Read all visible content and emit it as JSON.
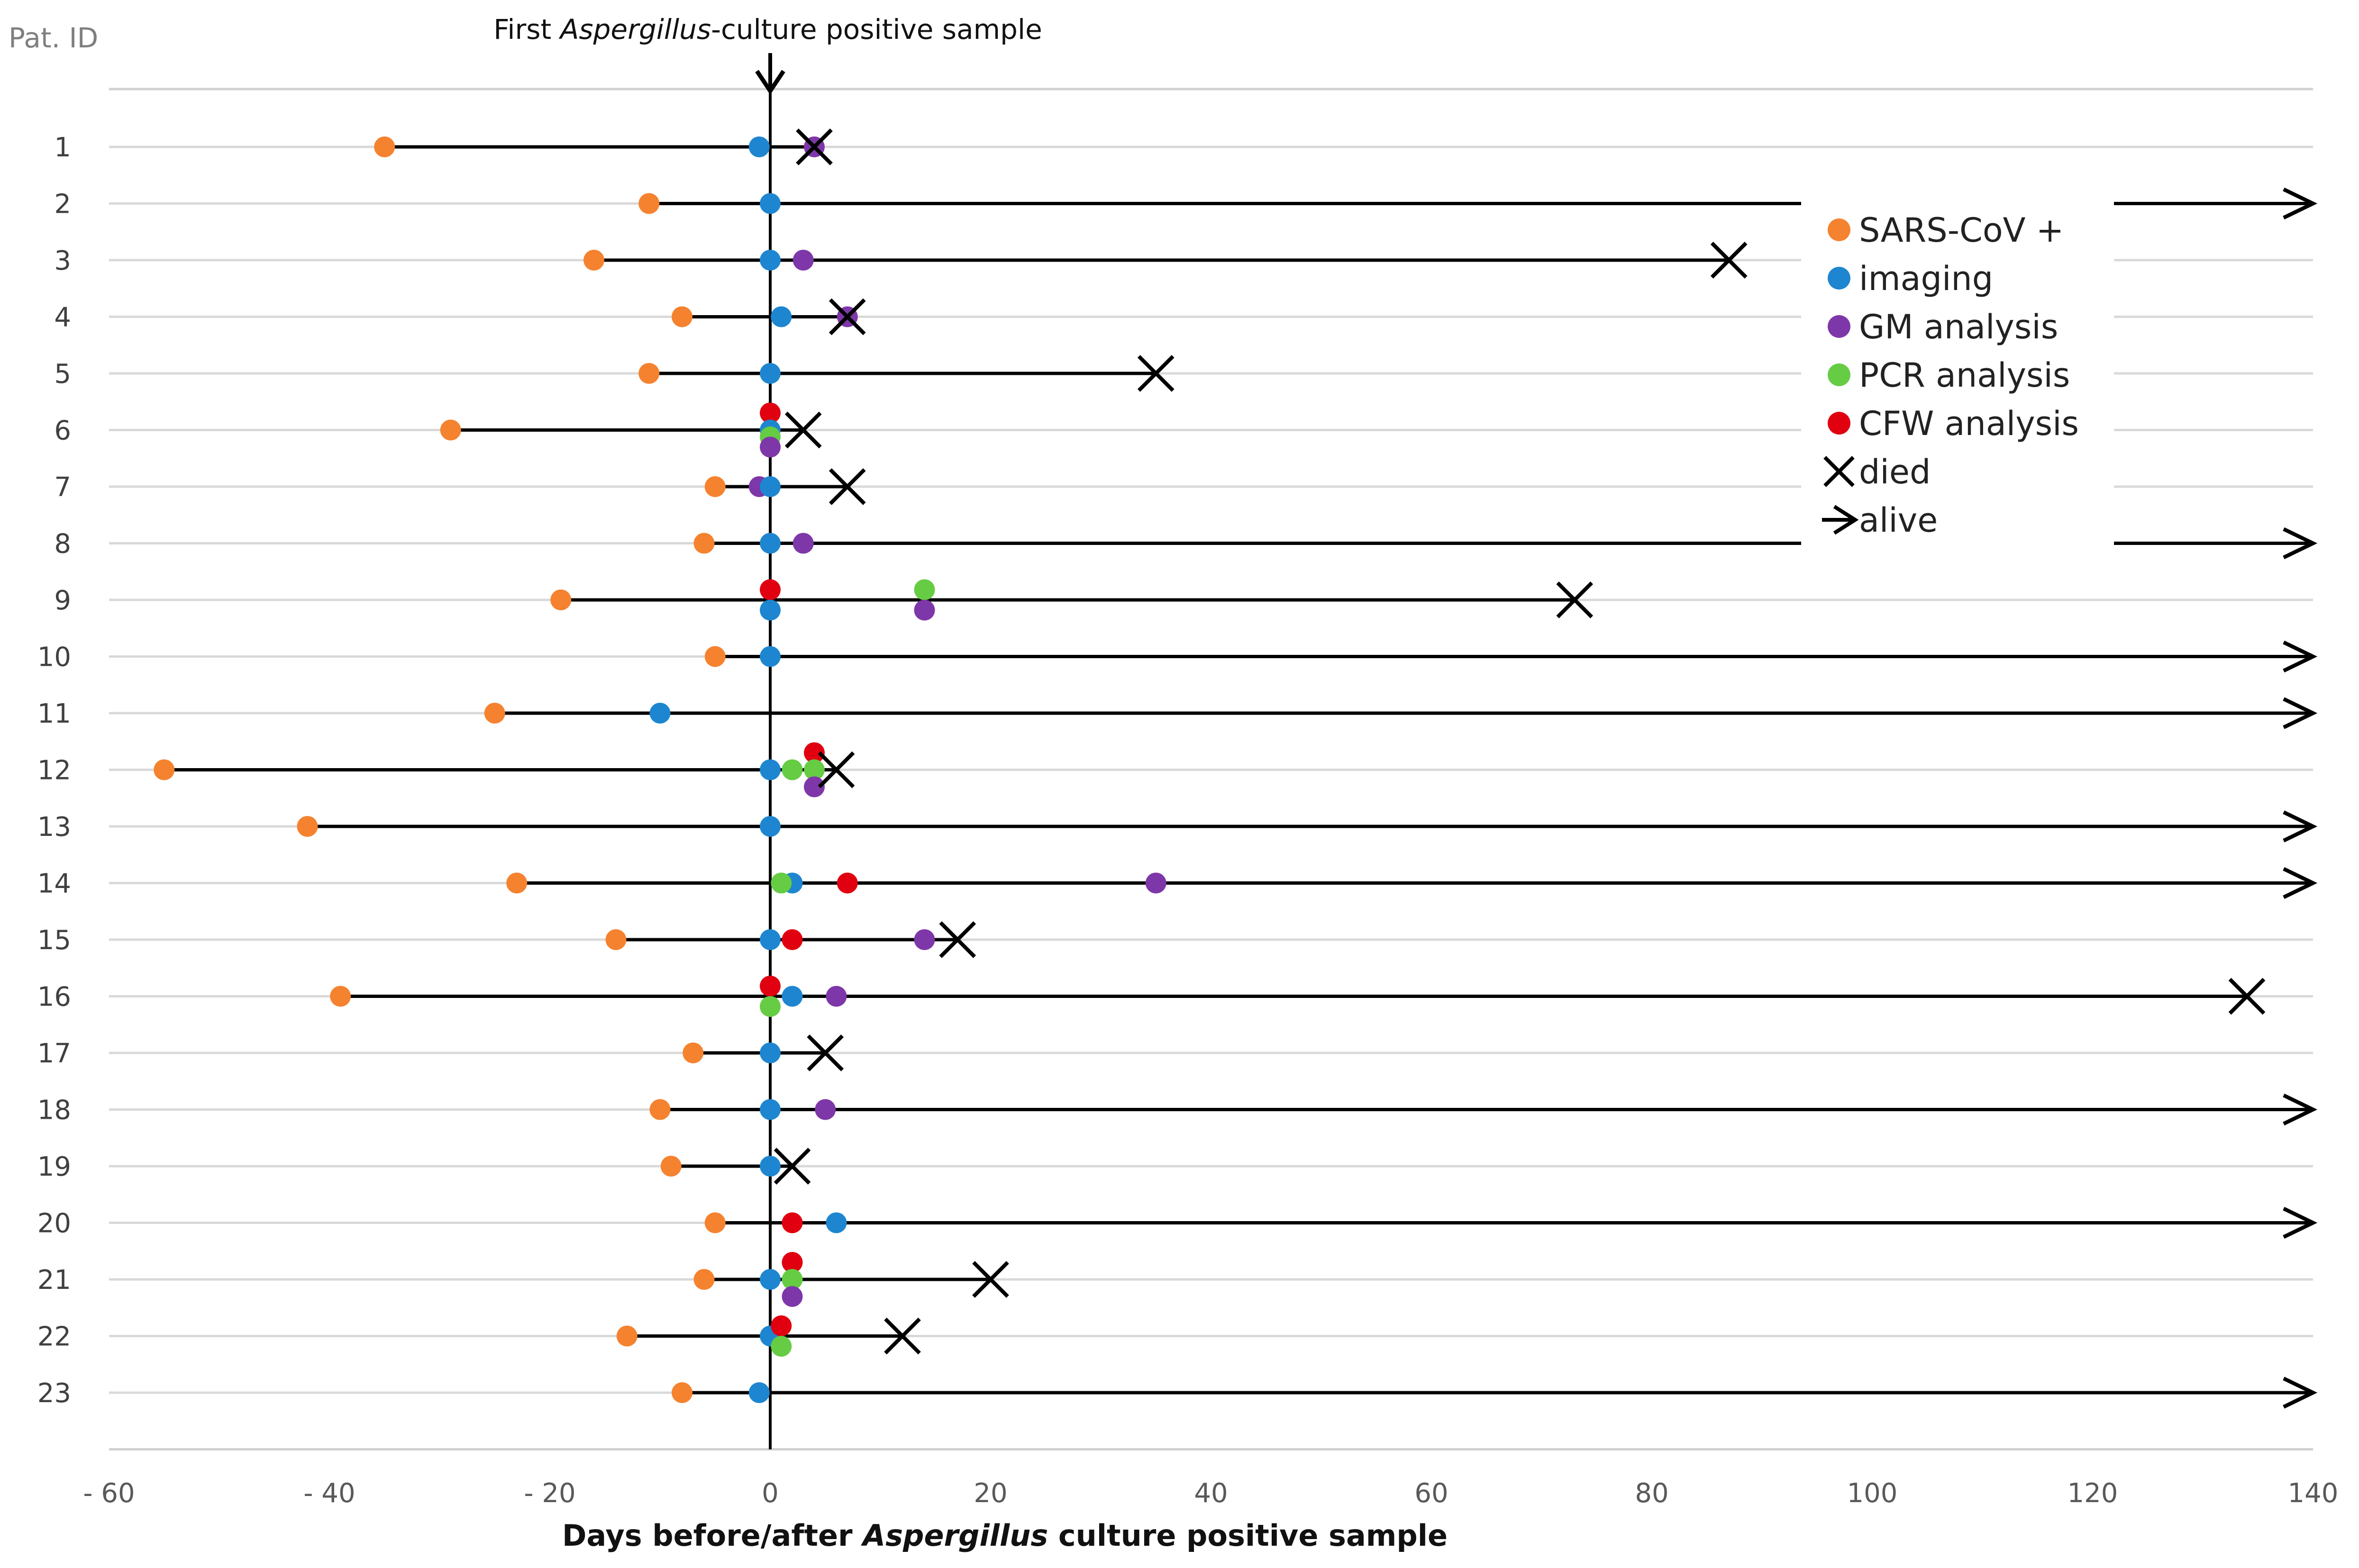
{
  "chart_data": {
    "type": "scatter",
    "title_annotation": {
      "prefix": "First ",
      "italic": "Aspergillus",
      "suffix": "-culture positive sample"
    },
    "ylabel": "Pat. ID",
    "xlabel": {
      "prefix": "Days before/after ",
      "italic": "Aspergillus",
      "suffix": " culture positive sample"
    },
    "xlim": [
      -60,
      140
    ],
    "xticks": [
      -60,
      -40,
      -20,
      0,
      20,
      40,
      60,
      80,
      100,
      120,
      140
    ],
    "xtick_labels": [
      "- 60",
      "- 40",
      "- 20",
      "0",
      "20",
      "40",
      "60",
      "80",
      "100",
      "120",
      "140"
    ],
    "grid": true,
    "legend_position": "top-right",
    "legend": [
      {
        "key": "sars",
        "label": "SARS-CoV +",
        "marker": "dot",
        "color": "#F5822F"
      },
      {
        "key": "imaging",
        "label": "imaging",
        "marker": "dot",
        "color": "#1E86D0"
      },
      {
        "key": "gm",
        "label": "GM analysis",
        "marker": "dot",
        "color": "#7E37A8"
      },
      {
        "key": "pcr",
        "label": "PCR analysis",
        "marker": "dot",
        "color": "#66CC44"
      },
      {
        "key": "cfw",
        "label": "CFW analysis",
        "marker": "dot",
        "color": "#E00010"
      },
      {
        "key": "died",
        "label": "died",
        "marker": "cross",
        "color": "#000000"
      },
      {
        "key": "alive",
        "label": "alive",
        "marker": "arrow",
        "color": "#000000"
      }
    ],
    "patients": [
      {
        "id": "1",
        "start": -35,
        "end": 4,
        "outcome": "died",
        "events": [
          {
            "t": "sars",
            "d": -35
          },
          {
            "t": "imaging",
            "d": -1
          },
          {
            "t": "gm",
            "d": 4
          }
        ]
      },
      {
        "id": "2",
        "start": -11,
        "end": 140,
        "outcome": "alive",
        "events": [
          {
            "t": "sars",
            "d": -11
          },
          {
            "t": "imaging",
            "d": 0
          }
        ]
      },
      {
        "id": "3",
        "start": -16,
        "end": 87,
        "outcome": "died",
        "events": [
          {
            "t": "sars",
            "d": -16
          },
          {
            "t": "imaging",
            "d": 0
          },
          {
            "t": "gm",
            "d": 3
          }
        ]
      },
      {
        "id": "4",
        "start": -8,
        "end": 7,
        "outcome": "died",
        "events": [
          {
            "t": "sars",
            "d": -8
          },
          {
            "t": "imaging",
            "d": 1
          },
          {
            "t": "gm",
            "d": 7
          }
        ]
      },
      {
        "id": "5",
        "start": -11,
        "end": 35,
        "outcome": "died",
        "events": [
          {
            "t": "sars",
            "d": -11
          },
          {
            "t": "imaging",
            "d": 0
          }
        ]
      },
      {
        "id": "6",
        "start": -29,
        "end": 3,
        "outcome": "died",
        "events": [
          {
            "t": "sars",
            "d": -29
          },
          {
            "t": "cfw",
            "d": 0,
            "off": -1
          },
          {
            "t": "imaging",
            "d": 0,
            "off": 0
          },
          {
            "t": "pcr",
            "d": 0,
            "off": 0.4
          },
          {
            "t": "gm",
            "d": 0,
            "off": 1
          }
        ]
      },
      {
        "id": "7",
        "start": -5,
        "end": 7,
        "outcome": "died",
        "events": [
          {
            "t": "sars",
            "d": -5
          },
          {
            "t": "gm",
            "d": -1
          },
          {
            "t": "imaging",
            "d": 0
          }
        ]
      },
      {
        "id": "8",
        "start": -6,
        "end": 140,
        "outcome": "alive",
        "events": [
          {
            "t": "sars",
            "d": -6
          },
          {
            "t": "imaging",
            "d": 0
          },
          {
            "t": "gm",
            "d": 3
          }
        ]
      },
      {
        "id": "9",
        "start": -19,
        "end": 73,
        "outcome": "died",
        "events": [
          {
            "t": "sars",
            "d": -19
          },
          {
            "t": "cfw",
            "d": 0,
            "off": -0.6
          },
          {
            "t": "imaging",
            "d": 0,
            "off": 0.6
          },
          {
            "t": "pcr",
            "d": 14,
            "off": -0.6
          },
          {
            "t": "gm",
            "d": 14,
            "off": 0.6
          }
        ]
      },
      {
        "id": "10",
        "start": -5,
        "end": 140,
        "outcome": "alive",
        "events": [
          {
            "t": "sars",
            "d": -5
          },
          {
            "t": "imaging",
            "d": 0
          }
        ]
      },
      {
        "id": "11",
        "start": -25,
        "end": 140,
        "outcome": "alive",
        "events": [
          {
            "t": "sars",
            "d": -25
          },
          {
            "t": "imaging",
            "d": -10
          }
        ]
      },
      {
        "id": "12",
        "start": -55,
        "end": 6,
        "outcome": "died",
        "events": [
          {
            "t": "sars",
            "d": -55
          },
          {
            "t": "imaging",
            "d": 0
          },
          {
            "t": "pcr",
            "d": 2
          },
          {
            "t": "cfw",
            "d": 4,
            "off": -1
          },
          {
            "t": "pcr",
            "d": 4,
            "off": 0
          },
          {
            "t": "gm",
            "d": 4,
            "off": 1
          }
        ]
      },
      {
        "id": "13",
        "start": -42,
        "end": 140,
        "outcome": "alive",
        "events": [
          {
            "t": "sars",
            "d": -42
          },
          {
            "t": "imaging",
            "d": 0
          }
        ]
      },
      {
        "id": "14",
        "start": -23,
        "end": 140,
        "outcome": "alive",
        "events": [
          {
            "t": "sars",
            "d": -23
          },
          {
            "t": "imaging",
            "d": 2
          },
          {
            "t": "pcr",
            "d": 1
          },
          {
            "t": "cfw",
            "d": 7
          },
          {
            "t": "gm",
            "d": 35
          }
        ]
      },
      {
        "id": "15",
        "start": -14,
        "end": 17,
        "outcome": "died",
        "events": [
          {
            "t": "sars",
            "d": -14
          },
          {
            "t": "imaging",
            "d": 0
          },
          {
            "t": "cfw",
            "d": 2
          },
          {
            "t": "gm",
            "d": 14
          }
        ]
      },
      {
        "id": "16",
        "start": -39,
        "end": 134,
        "outcome": "died",
        "events": [
          {
            "t": "sars",
            "d": -39
          },
          {
            "t": "cfw",
            "d": 0,
            "off": -0.6
          },
          {
            "t": "pcr",
            "d": 0,
            "off": 0.6
          },
          {
            "t": "imaging",
            "d": 2
          },
          {
            "t": "gm",
            "d": 6
          }
        ]
      },
      {
        "id": "17",
        "start": -7,
        "end": 5,
        "outcome": "died",
        "events": [
          {
            "t": "sars",
            "d": -7
          },
          {
            "t": "imaging",
            "d": 0
          }
        ]
      },
      {
        "id": "18",
        "start": -10,
        "end": 140,
        "outcome": "alive",
        "events": [
          {
            "t": "sars",
            "d": -10
          },
          {
            "t": "imaging",
            "d": 0
          },
          {
            "t": "gm",
            "d": 5
          }
        ]
      },
      {
        "id": "19",
        "start": -9,
        "end": 2,
        "outcome": "died",
        "events": [
          {
            "t": "sars",
            "d": -9
          },
          {
            "t": "imaging",
            "d": 0
          }
        ]
      },
      {
        "id": "20",
        "start": -5,
        "end": 140,
        "outcome": "alive",
        "events": [
          {
            "t": "sars",
            "d": -5
          },
          {
            "t": "cfw",
            "d": 2
          },
          {
            "t": "imaging",
            "d": 6
          }
        ]
      },
      {
        "id": "21",
        "start": -6,
        "end": 20,
        "outcome": "died",
        "events": [
          {
            "t": "sars",
            "d": -6
          },
          {
            "t": "imaging",
            "d": 0
          },
          {
            "t": "cfw",
            "d": 2,
            "off": -1
          },
          {
            "t": "pcr",
            "d": 2,
            "off": 0
          },
          {
            "t": "gm",
            "d": 2,
            "off": 1
          }
        ]
      },
      {
        "id": "22",
        "start": -13,
        "end": 12,
        "outcome": "died",
        "events": [
          {
            "t": "sars",
            "d": -13
          },
          {
            "t": "imaging",
            "d": 0
          },
          {
            "t": "cfw",
            "d": 1,
            "off": -0.6
          },
          {
            "t": "pcr",
            "d": 1,
            "off": 0.6
          }
        ]
      },
      {
        "id": "23",
        "start": -8,
        "end": 140,
        "outcome": "alive",
        "events": [
          {
            "t": "sars",
            "d": -8
          },
          {
            "t": "imaging",
            "d": -1
          }
        ]
      }
    ]
  }
}
